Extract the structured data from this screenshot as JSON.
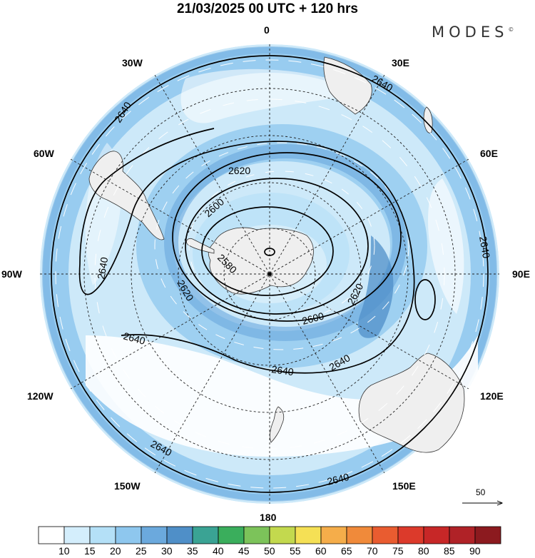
{
  "header": {
    "title": "21/03/2025  00 UTC  + 120 hrs",
    "brand": "MODES",
    "brand_mark": "©"
  },
  "map": {
    "projection": "south polar stereographic",
    "longitude_labels": {
      "top": "0",
      "upper_left": "30W",
      "upper_right": "30E",
      "left_high": "60W",
      "right_high": "60E",
      "left": "90W",
      "right": "90E",
      "left_low": "120W",
      "right_low": "120E",
      "lower_left": "150W",
      "lower_right": "150E",
      "bottom": "180"
    },
    "contour_labels": {
      "c1": "2640",
      "c2": "2620",
      "c3": "2600",
      "c4": "2640",
      "c5": "2580",
      "c6": "2620",
      "c7": "2640",
      "c8": "2640",
      "c9": "2600",
      "c10": "2620",
      "c11": "2640",
      "c12": "2640",
      "c13": "2640",
      "c14": "2640",
      "c15": "2640"
    },
    "reference_vector": "50"
  },
  "colorbar": {
    "colors": [
      "#ffffff",
      "#d4eefc",
      "#b4e0f7",
      "#8ec7ee",
      "#6ba9dd",
      "#4f8fc8",
      "#3aa394",
      "#3aae5c",
      "#7cc35a",
      "#c3d94e",
      "#f5e055",
      "#f5ad4a",
      "#f08a3a",
      "#e95c30",
      "#dc3a2b",
      "#c72727",
      "#b02227",
      "#8c1a1f"
    ],
    "labels": [
      "10",
      "15",
      "20",
      "25",
      "30",
      "35",
      "40",
      "45",
      "50",
      "55",
      "60",
      "65",
      "70",
      "75",
      "80",
      "85",
      "90"
    ]
  }
}
